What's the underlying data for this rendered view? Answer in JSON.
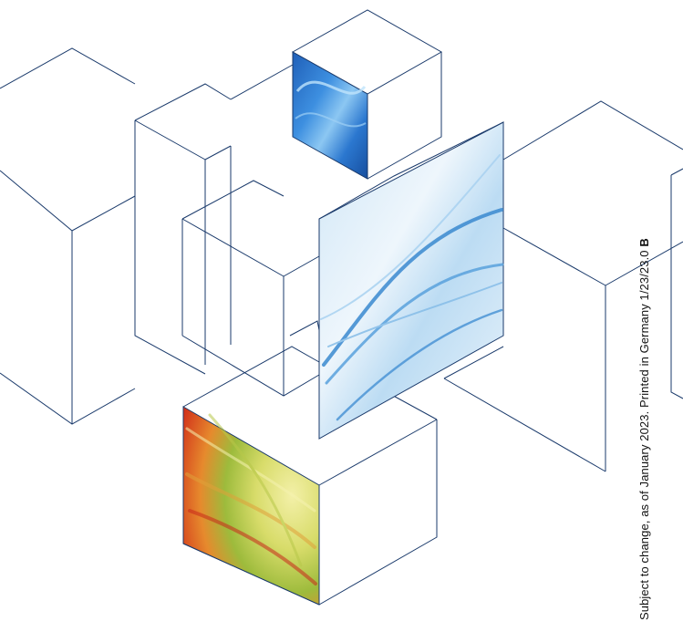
{
  "footer_note": {
    "text": "Subject to change, as of January 2023.  Printed in Germany 1/23/23.0 ",
    "bold_tail": "B"
  },
  "colors": {
    "line": "#1a3a6b",
    "paper": "#ffffff"
  }
}
